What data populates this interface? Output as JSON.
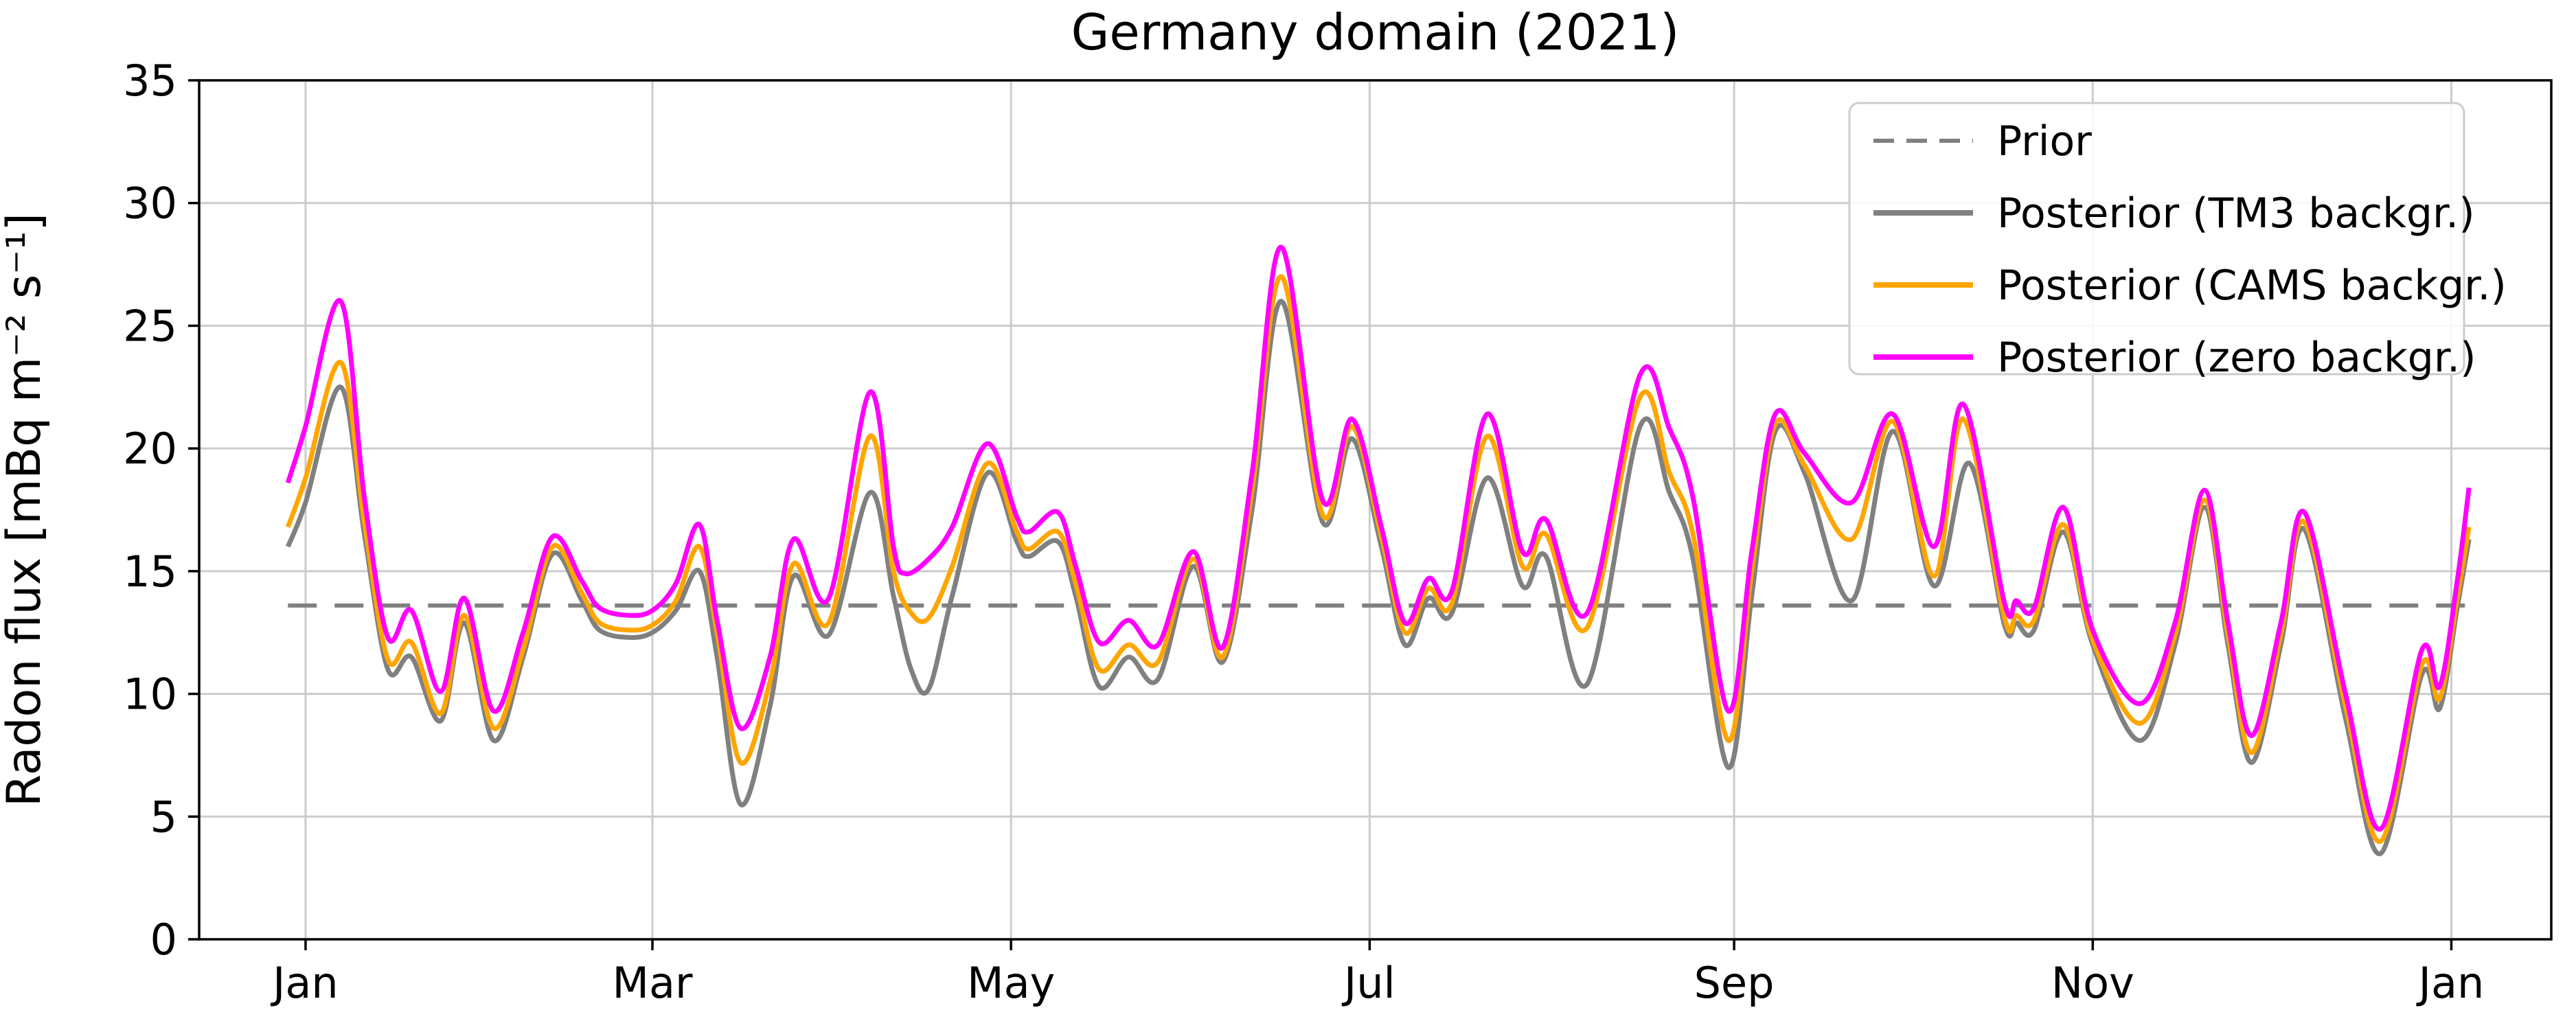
{
  "title": "Germany domain (2021)",
  "ylabel": "Radon flux [mBq m⁻² s⁻¹]",
  "colors": {
    "prior": "#808080",
    "posterior_tm3": "#808080",
    "posterior_cams": "#FFA500",
    "posterior_zero": "#FF00FF",
    "grid": "#cccccc",
    "spine": "#000000",
    "legend_border": "#cccccc"
  },
  "chart_data": {
    "type": "line",
    "title": "Germany domain (2021)",
    "xlabel": "",
    "ylabel": "Radon flux [mBq m⁻² s⁻¹]",
    "ylim": [
      0,
      35
    ],
    "yticks": [
      0,
      5,
      10,
      15,
      20,
      25,
      30,
      35
    ],
    "xlim_days": [
      -18.1,
      382
    ],
    "xticks": [
      {
        "day": 0,
        "label": "Jan"
      },
      {
        "day": 59,
        "label": "Mar"
      },
      {
        "day": 120,
        "label": "May"
      },
      {
        "day": 181,
        "label": "Jul"
      },
      {
        "day": 243,
        "label": "Sep"
      },
      {
        "day": 304,
        "label": "Nov"
      },
      {
        "day": 365,
        "label": "Jan"
      }
    ],
    "grid": true,
    "legend_position": "upper right",
    "prior_value": 13.6,
    "series": [
      {
        "name": "Prior",
        "color": "#808080",
        "style": "dashed",
        "width": 6,
        "points": [
          [
            -3,
            13.6
          ],
          [
            368,
            13.6
          ]
        ]
      },
      {
        "name": "Posterior (TM3 backgr.)",
        "color": "#808080",
        "style": "solid",
        "width": 7,
        "points": [
          [
            -3,
            16.0
          ],
          [
            0,
            17.8
          ],
          [
            6,
            22.5
          ],
          [
            10,
            16.5
          ],
          [
            14,
            11.0
          ],
          [
            18,
            11.5
          ],
          [
            23,
            8.9
          ],
          [
            27,
            12.9
          ],
          [
            32,
            8.1
          ],
          [
            37,
            11.5
          ],
          [
            42,
            15.7
          ],
          [
            47,
            13.8
          ],
          [
            50,
            12.6
          ],
          [
            55,
            12.3
          ],
          [
            59,
            12.5
          ],
          [
            63,
            13.4
          ],
          [
            67,
            15.0
          ],
          [
            70,
            11.5
          ],
          [
            74,
            5.5
          ],
          [
            79,
            9.5
          ],
          [
            83,
            14.8
          ],
          [
            89,
            12.4
          ],
          [
            96,
            18.2
          ],
          [
            100,
            14.0
          ],
          [
            103,
            11.0
          ],
          [
            106,
            10.2
          ],
          [
            110,
            14.0
          ],
          [
            116,
            19.0
          ],
          [
            121,
            16.2
          ],
          [
            123,
            15.6
          ],
          [
            128,
            16.2
          ],
          [
            131,
            14.0
          ],
          [
            135,
            10.3
          ],
          [
            140,
            11.5
          ],
          [
            145,
            10.6
          ],
          [
            151,
            15.2
          ],
          [
            156,
            11.3
          ],
          [
            161,
            17.5
          ],
          [
            166,
            26.0
          ],
          [
            173,
            17.0
          ],
          [
            178,
            20.4
          ],
          [
            183,
            16.0
          ],
          [
            187,
            12.0
          ],
          [
            191,
            13.9
          ],
          [
            195,
            13.3
          ],
          [
            201,
            18.8
          ],
          [
            207,
            14.4
          ],
          [
            211,
            15.6
          ],
          [
            218,
            10.4
          ],
          [
            227,
            20.9
          ],
          [
            232,
            18.2
          ],
          [
            236,
            15.5
          ],
          [
            242,
            7.0
          ],
          [
            246,
            14.0
          ],
          [
            250,
            20.7
          ],
          [
            255,
            19.0
          ],
          [
            263,
            13.8
          ],
          [
            270,
            20.7
          ],
          [
            277,
            14.4
          ],
          [
            283,
            19.4
          ],
          [
            289,
            12.8
          ],
          [
            291,
            12.9
          ],
          [
            294,
            12.6
          ],
          [
            299,
            16.6
          ],
          [
            304,
            12.0
          ],
          [
            312,
            8.1
          ],
          [
            318,
            12.0
          ],
          [
            323,
            17.6
          ],
          [
            327,
            12.0
          ],
          [
            331,
            7.2
          ],
          [
            336,
            12.0
          ],
          [
            340,
            16.7
          ],
          [
            347,
            9.0
          ],
          [
            353,
            3.5
          ],
          [
            360,
            10.8
          ],
          [
            363,
            9.4
          ],
          [
            366,
            13.5
          ],
          [
            368,
            16.3
          ]
        ]
      },
      {
        "name": "Posterior (CAMS backgr.)",
        "color": "#FFA500",
        "style": "solid",
        "width": 7,
        "points": [
          [
            -3,
            16.8
          ],
          [
            0,
            18.8
          ],
          [
            6,
            23.5
          ],
          [
            10,
            17.0
          ],
          [
            14,
            11.4
          ],
          [
            18,
            12.1
          ],
          [
            23,
            9.2
          ],
          [
            27,
            13.2
          ],
          [
            32,
            8.6
          ],
          [
            37,
            11.8
          ],
          [
            42,
            16.0
          ],
          [
            47,
            14.1
          ],
          [
            50,
            12.9
          ],
          [
            55,
            12.6
          ],
          [
            59,
            12.8
          ],
          [
            63,
            13.8
          ],
          [
            67,
            16.0
          ],
          [
            70,
            12.5
          ],
          [
            74,
            7.2
          ],
          [
            79,
            10.5
          ],
          [
            83,
            15.3
          ],
          [
            89,
            12.9
          ],
          [
            96,
            20.5
          ],
          [
            100,
            15.0
          ],
          [
            103,
            13.3
          ],
          [
            106,
            13.1
          ],
          [
            110,
            15.2
          ],
          [
            116,
            19.4
          ],
          [
            121,
            16.6
          ],
          [
            123,
            15.9
          ],
          [
            128,
            16.6
          ],
          [
            131,
            14.5
          ],
          [
            135,
            11.0
          ],
          [
            140,
            12.0
          ],
          [
            145,
            11.3
          ],
          [
            151,
            15.5
          ],
          [
            156,
            11.5
          ],
          [
            161,
            18.3
          ],
          [
            166,
            27.0
          ],
          [
            173,
            17.3
          ],
          [
            178,
            20.9
          ],
          [
            183,
            16.4
          ],
          [
            187,
            12.5
          ],
          [
            191,
            14.3
          ],
          [
            195,
            13.7
          ],
          [
            201,
            20.5
          ],
          [
            207,
            15.2
          ],
          [
            211,
            16.5
          ],
          [
            218,
            12.7
          ],
          [
            227,
            22.1
          ],
          [
            232,
            19.0
          ],
          [
            236,
            16.5
          ],
          [
            242,
            8.1
          ],
          [
            246,
            15.0
          ],
          [
            250,
            21.0
          ],
          [
            255,
            19.3
          ],
          [
            263,
            16.3
          ],
          [
            270,
            21.1
          ],
          [
            277,
            14.8
          ],
          [
            282,
            21.2
          ],
          [
            289,
            13.1
          ],
          [
            291,
            13.2
          ],
          [
            294,
            13.0
          ],
          [
            299,
            16.9
          ],
          [
            304,
            12.2
          ],
          [
            312,
            8.8
          ],
          [
            318,
            12.4
          ],
          [
            323,
            17.9
          ],
          [
            327,
            12.4
          ],
          [
            331,
            7.6
          ],
          [
            336,
            12.4
          ],
          [
            340,
            17.0
          ],
          [
            347,
            9.5
          ],
          [
            353,
            4.0
          ],
          [
            360,
            11.2
          ],
          [
            363,
            9.8
          ],
          [
            366,
            13.9
          ],
          [
            368,
            16.8
          ]
        ]
      },
      {
        "name": "Posterior (zero backgr.)",
        "color": "#FF00FF",
        "style": "solid",
        "width": 7,
        "points": [
          [
            -3,
            18.6
          ],
          [
            0,
            20.9
          ],
          [
            6,
            26.0
          ],
          [
            10,
            18.0
          ],
          [
            14,
            12.3
          ],
          [
            18,
            13.4
          ],
          [
            23,
            10.1
          ],
          [
            27,
            13.9
          ],
          [
            32,
            9.3
          ],
          [
            37,
            12.5
          ],
          [
            42,
            16.4
          ],
          [
            47,
            14.6
          ],
          [
            50,
            13.5
          ],
          [
            55,
            13.2
          ],
          [
            59,
            13.4
          ],
          [
            63,
            14.5
          ],
          [
            67,
            16.9
          ],
          [
            70,
            13.0
          ],
          [
            74,
            8.6
          ],
          [
            79,
            11.5
          ],
          [
            83,
            16.3
          ],
          [
            89,
            13.9
          ],
          [
            96,
            22.3
          ],
          [
            100,
            16.0
          ],
          [
            102,
            14.9
          ],
          [
            106,
            15.5
          ],
          [
            110,
            16.8
          ],
          [
            116,
            20.2
          ],
          [
            121,
            17.2
          ],
          [
            123,
            16.6
          ],
          [
            128,
            17.4
          ],
          [
            131,
            15.2
          ],
          [
            135,
            12.1
          ],
          [
            140,
            13.0
          ],
          [
            145,
            12.0
          ],
          [
            151,
            15.8
          ],
          [
            156,
            11.9
          ],
          [
            161,
            19.0
          ],
          [
            166,
            28.2
          ],
          [
            173,
            17.9
          ],
          [
            178,
            21.2
          ],
          [
            183,
            16.8
          ],
          [
            187,
            12.9
          ],
          [
            191,
            14.7
          ],
          [
            195,
            14.2
          ],
          [
            201,
            21.4
          ],
          [
            207,
            15.8
          ],
          [
            211,
            17.1
          ],
          [
            218,
            13.3
          ],
          [
            227,
            23.0
          ],
          [
            232,
            20.8
          ],
          [
            236,
            18.0
          ],
          [
            242,
            9.3
          ],
          [
            246,
            15.8
          ],
          [
            250,
            21.4
          ],
          [
            255,
            19.8
          ],
          [
            263,
            17.8
          ],
          [
            270,
            21.4
          ],
          [
            277,
            16.0
          ],
          [
            282,
            21.8
          ],
          [
            289,
            13.7
          ],
          [
            291,
            13.8
          ],
          [
            294,
            13.5
          ],
          [
            299,
            17.6
          ],
          [
            304,
            12.6
          ],
          [
            312,
            9.6
          ],
          [
            318,
            12.9
          ],
          [
            323,
            18.3
          ],
          [
            327,
            12.9
          ],
          [
            331,
            8.3
          ],
          [
            336,
            12.9
          ],
          [
            340,
            17.4
          ],
          [
            347,
            10.0
          ],
          [
            353,
            4.5
          ],
          [
            360,
            11.8
          ],
          [
            363,
            10.3
          ],
          [
            366,
            14.6
          ],
          [
            368,
            18.4
          ]
        ]
      }
    ],
    "legend_entries": [
      "Prior",
      "Posterior (TM3 backgr.)",
      "Posterior (CAMS backgr.)",
      "Posterior (zero backgr.)"
    ]
  }
}
